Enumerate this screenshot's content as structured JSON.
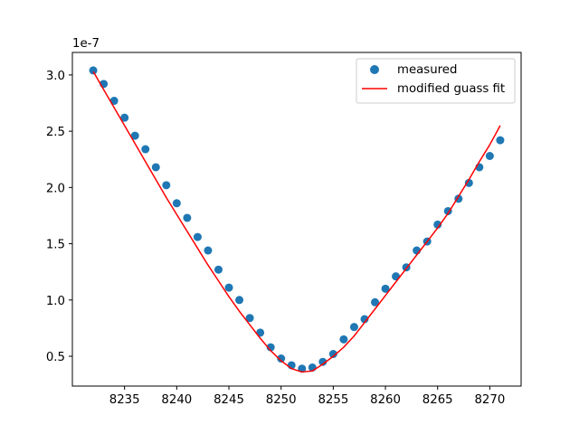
{
  "chart_data": {
    "type": "scatter",
    "xlim": [
      8230,
      8273
    ],
    "ylim": [
      0.235,
      3.2
    ],
    "y_scale_offset": "1e-7",
    "x_ticks": [
      8235,
      8240,
      8245,
      8250,
      8255,
      8260,
      8265,
      8270
    ],
    "y_ticks": [
      0.5,
      1.0,
      1.5,
      2.0,
      2.5,
      3.0
    ],
    "x_tick_labels": [
      "8235",
      "8240",
      "8245",
      "8250",
      "8255",
      "8260",
      "8265",
      "8270"
    ],
    "y_tick_labels": [
      "0.5",
      "1.0",
      "1.5",
      "2.0",
      "2.5",
      "3.0"
    ],
    "grid": false,
    "legend_position": "upper right",
    "series": [
      {
        "name": "measured",
        "kind": "scatter",
        "color": "#1f77b4",
        "x": [
          8232,
          8233,
          8234,
          8235,
          8236,
          8237,
          8238,
          8239,
          8240,
          8241,
          8242,
          8243,
          8244,
          8245,
          8246,
          8247,
          8248,
          8249,
          8250,
          8251,
          8252,
          8253,
          8254,
          8255,
          8256,
          8257,
          8258,
          8259,
          8260,
          8261,
          8262,
          8263,
          8264,
          8265,
          8266,
          8267,
          8268,
          8269,
          8270,
          8271
        ],
        "y": [
          3.04,
          2.92,
          2.77,
          2.62,
          2.46,
          2.34,
          2.18,
          2.02,
          1.86,
          1.73,
          1.56,
          1.44,
          1.27,
          1.11,
          1.0,
          0.84,
          0.71,
          0.58,
          0.48,
          0.42,
          0.39,
          0.4,
          0.45,
          0.52,
          0.65,
          0.76,
          0.83,
          0.98,
          1.1,
          1.21,
          1.29,
          1.44,
          1.52,
          1.67,
          1.79,
          1.9,
          2.04,
          2.18,
          2.28,
          2.42
        ]
      },
      {
        "name": "modified guass fit",
        "kind": "line",
        "color": "#ff0000",
        "x": [
          8232,
          8233,
          8234,
          8235,
          8236,
          8237,
          8238,
          8239,
          8240,
          8241,
          8242,
          8243,
          8244,
          8245,
          8246,
          8247,
          8248,
          8249,
          8250,
          8251,
          8252,
          8253,
          8254,
          8255,
          8256,
          8257,
          8258,
          8259,
          8260,
          8261,
          8262,
          8263,
          8264,
          8265,
          8266,
          8267,
          8268,
          8269,
          8270,
          8271
        ],
        "y": [
          3.03,
          2.87,
          2.71,
          2.55,
          2.39,
          2.23,
          2.07,
          1.91,
          1.76,
          1.61,
          1.46,
          1.31,
          1.17,
          1.03,
          0.9,
          0.78,
          0.66,
          0.55,
          0.46,
          0.39,
          0.36,
          0.37,
          0.43,
          0.5,
          0.58,
          0.68,
          0.8,
          0.92,
          1.04,
          1.16,
          1.28,
          1.4,
          1.52,
          1.64,
          1.77,
          1.92,
          2.07,
          2.23,
          2.38,
          2.55
        ]
      }
    ]
  }
}
